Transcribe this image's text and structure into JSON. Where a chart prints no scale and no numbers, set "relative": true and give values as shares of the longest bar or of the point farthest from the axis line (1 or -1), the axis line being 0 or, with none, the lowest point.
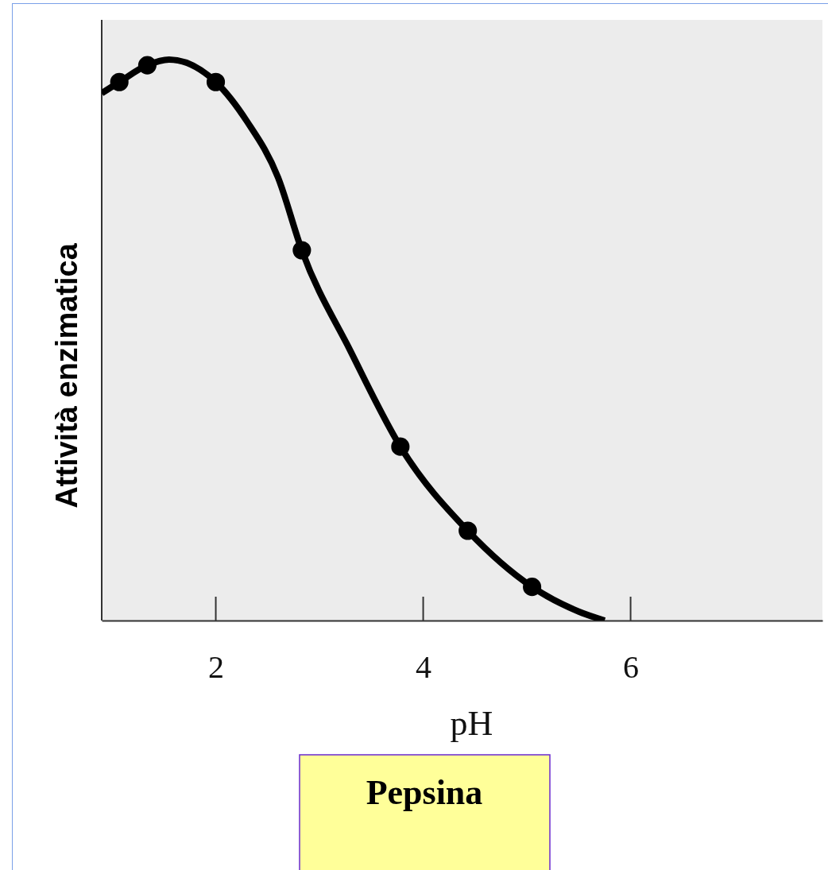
{
  "chart_data": {
    "type": "line",
    "xlabel": "pH",
    "ylabel": "Attività enzimatica",
    "relative": true,
    "xlim": [
      0.9,
      7.85
    ],
    "xticks": [
      2,
      4,
      6
    ],
    "tick_labels": "x",
    "annotations": [
      "Pepsina"
    ],
    "series": [
      {
        "color": "#000000",
        "marker": "none",
        "x": [
          0.9,
          1.07,
          1.34,
          1.55,
          2.0,
          2.3,
          2.6,
          2.83,
          3.3,
          3.78,
          4.43,
          5.05,
          5.5,
          5.75
        ],
        "values": [
          0.94,
          0.96,
          0.99,
          1.0,
          0.96,
          0.89,
          0.79,
          0.66,
          0.48,
          0.31,
          0.16,
          0.06,
          0.016,
          0
        ]
      },
      {
        "type": "scatter",
        "color": "#000000",
        "marker": "circle",
        "x": [
          1.07,
          1.34,
          2.0,
          2.83,
          3.78,
          4.43,
          5.05
        ],
        "values": [
          0.96,
          0.99,
          0.96,
          0.66,
          0.31,
          0.16,
          0.06
        ]
      }
    ]
  }
}
